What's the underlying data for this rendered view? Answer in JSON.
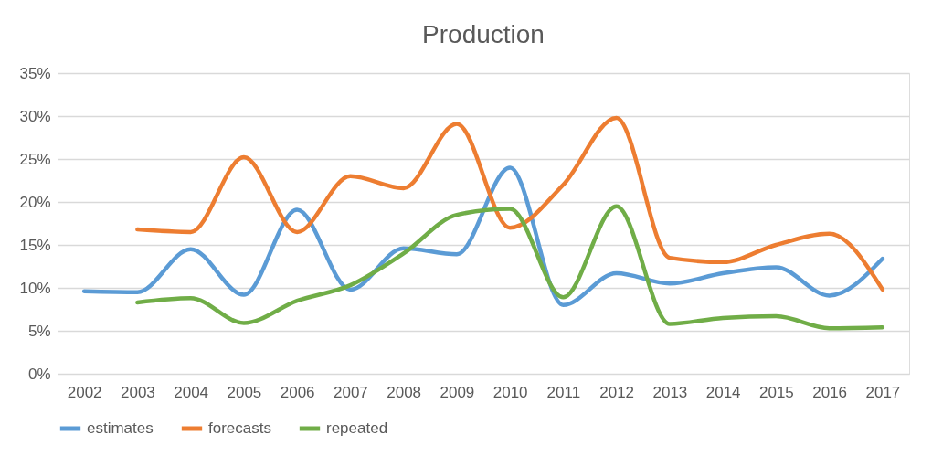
{
  "chart_data": {
    "type": "line",
    "title": "Production",
    "categories": [
      "2002",
      "2003",
      "2004",
      "2005",
      "2006",
      "2007",
      "2008",
      "2009",
      "2010",
      "2011",
      "2012",
      "2013",
      "2014",
      "2015",
      "2016",
      "2017"
    ],
    "series": [
      {
        "name": "estimates",
        "color": "#5b9bd5",
        "values": [
          9.6,
          9.5,
          14.5,
          9.2,
          19.1,
          9.8,
          14.6,
          13.9,
          24,
          8,
          11.7,
          10.5,
          11.7,
          12.4,
          9.1,
          13.4
        ]
      },
      {
        "name": "forecasts",
        "color": "#ed7d31",
        "values": [
          null,
          16.8,
          16.5,
          25.2,
          16.5,
          23,
          21.6,
          29.1,
          17,
          22,
          29.8,
          13.5,
          13,
          15,
          16.3,
          9.8
        ]
      },
      {
        "name": "repeated",
        "color": "#70ad47",
        "values": [
          null,
          8.3,
          8.8,
          5.9,
          8.5,
          10.3,
          14,
          18.5,
          19.2,
          8.9,
          19.5,
          5.8,
          6.5,
          6.7,
          5.3,
          5.4
        ]
      }
    ],
    "ylim": [
      0,
      35
    ],
    "yticks": [
      {
        "value": 0,
        "label": "0%"
      },
      {
        "value": 5,
        "label": "5%"
      },
      {
        "value": 10,
        "label": "10%"
      },
      {
        "value": 15,
        "label": "15%"
      },
      {
        "value": 20,
        "label": "20%"
      },
      {
        "value": 25,
        "label": "25%"
      },
      {
        "value": 30,
        "label": "30%"
      },
      {
        "value": 35,
        "label": "35%"
      }
    ],
    "grid": "y",
    "legend": "bottom",
    "marker": "none",
    "line_style": "solid"
  }
}
